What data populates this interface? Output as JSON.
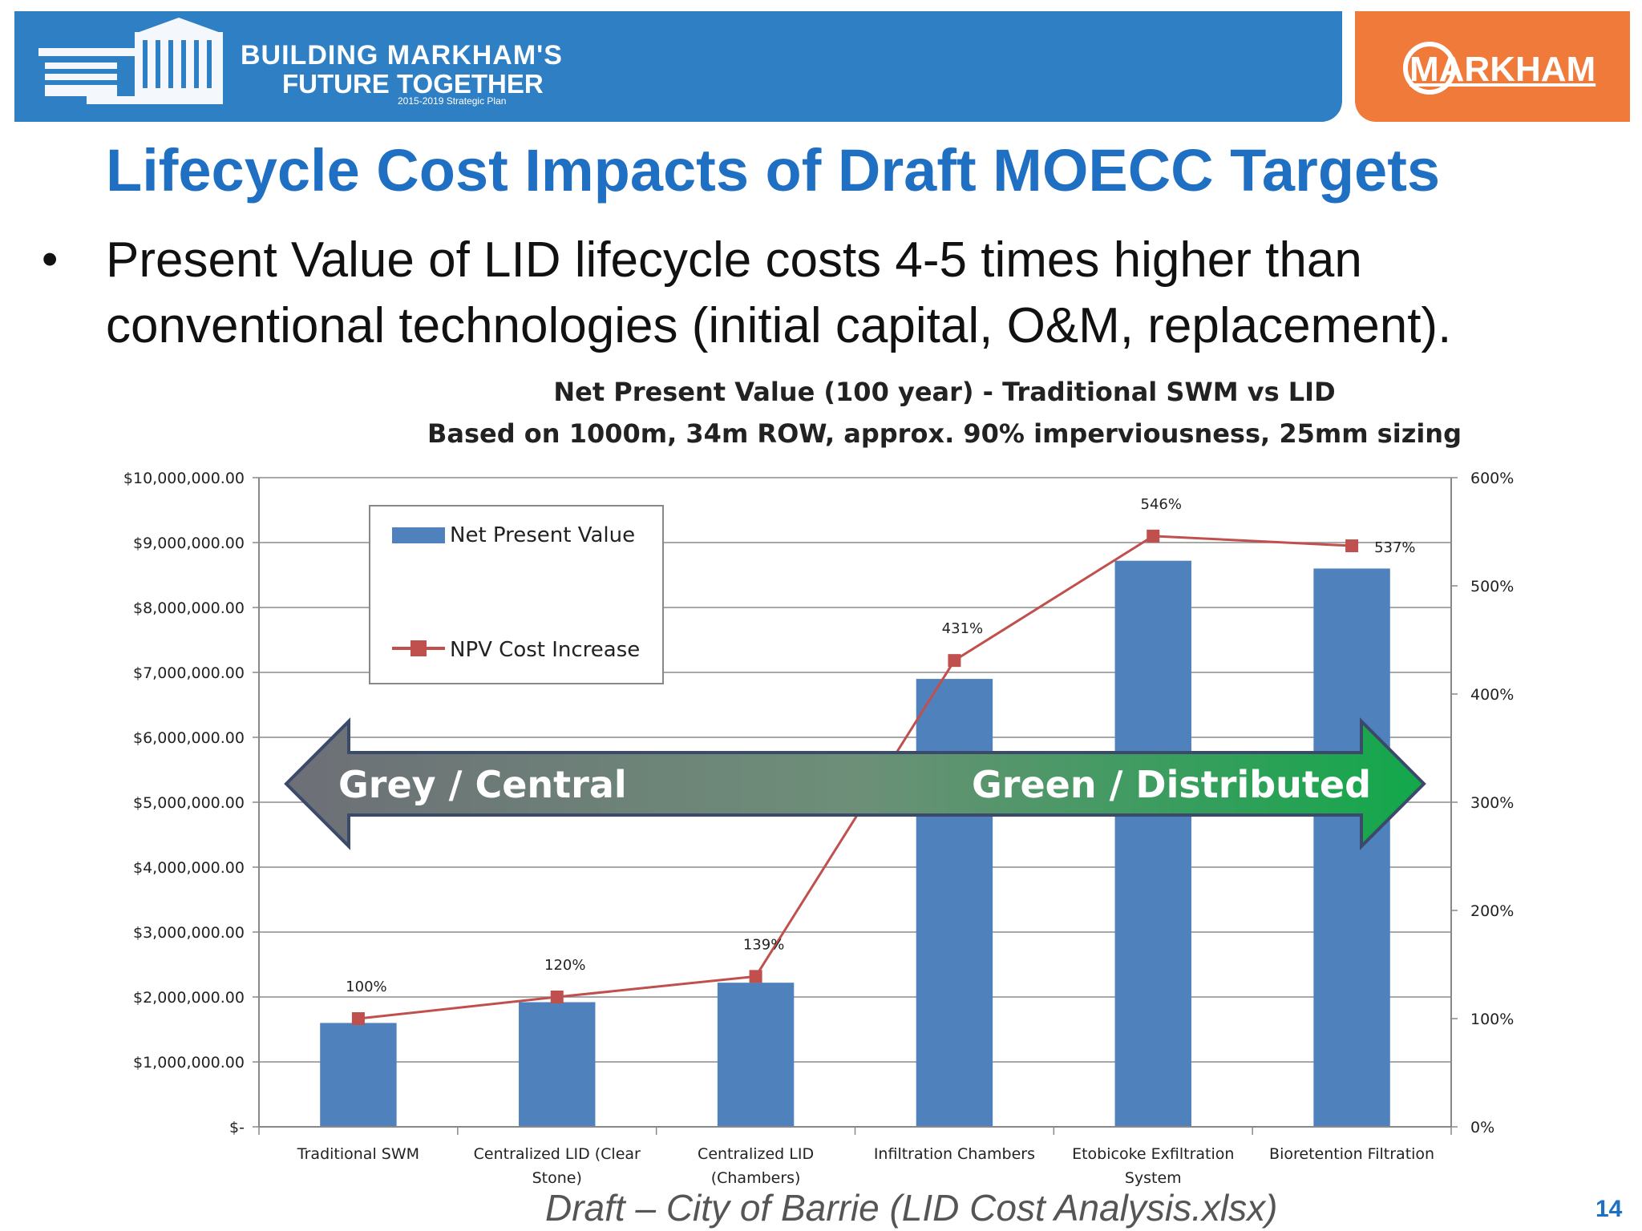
{
  "header": {
    "logo_line1": "BUILDING MARKHAM'S",
    "logo_line2": "FUTURE TOGETHER",
    "logo_line3": "2015-2019 Strategic Plan",
    "brand": "MARKHAM"
  },
  "slide": {
    "title": "Lifecycle Cost Impacts of Draft MOECC Targets",
    "bullet_line1": "Present Value of LID lifecycle costs 4-5 times higher than",
    "bullet_line2": "conventional technologies (initial capital, O&M, replacement).",
    "footer": "Draft – City of Barrie (LID Cost Analysis.xlsx)",
    "page_number": "14"
  },
  "chart_data": {
    "type": "bar",
    "title": "Net Present Value (100 year) - Traditional SWM vs LID",
    "subtitle": "Based on 1000m, 34m ROW, approx. 90% imperviousness, 25mm sizing",
    "categories": [
      [
        "Traditional SWM"
      ],
      [
        "Centralized LID (Clear",
        "Stone)"
      ],
      [
        "Centralized LID",
        "(Chambers)"
      ],
      [
        "Infiltration Chambers"
      ],
      [
        "Etobicoke Exfiltration",
        "System"
      ],
      [
        "Bioretention Filtration"
      ]
    ],
    "series": [
      {
        "name": "Net Present Value",
        "type": "bar",
        "axis": "left",
        "color": "#4f81bd",
        "values": [
          1600000,
          1920000,
          2220000,
          6900000,
          8720000,
          8600000
        ]
      },
      {
        "name": "NPV Cost Increase",
        "type": "line",
        "axis": "right",
        "color": "#c0504d",
        "values": [
          100,
          120,
          139,
          431,
          546,
          537
        ],
        "labels": [
          "100%",
          "120%",
          "139%",
          "431%",
          "546%",
          "537%"
        ]
      }
    ],
    "ylim_left": [
      0,
      10000000
    ],
    "ylim_right": [
      0,
      600
    ],
    "left_ticks": [
      "$-",
      "$1,000,000.00",
      "$2,000,000.00",
      "$3,000,000.00",
      "$4,000,000.00",
      "$5,000,000.00",
      "$6,000,000.00",
      "$7,000,000.00",
      "$8,000,000.00",
      "$9,000,000.00",
      "$10,000,000.00"
    ],
    "right_ticks": [
      "0%",
      "100%",
      "200%",
      "300%",
      "400%",
      "500%",
      "600%"
    ],
    "grid": true,
    "legend": "top-left",
    "annotation_arrow": {
      "left_label": "Grey / Central",
      "right_label": "Green / Distributed"
    }
  }
}
